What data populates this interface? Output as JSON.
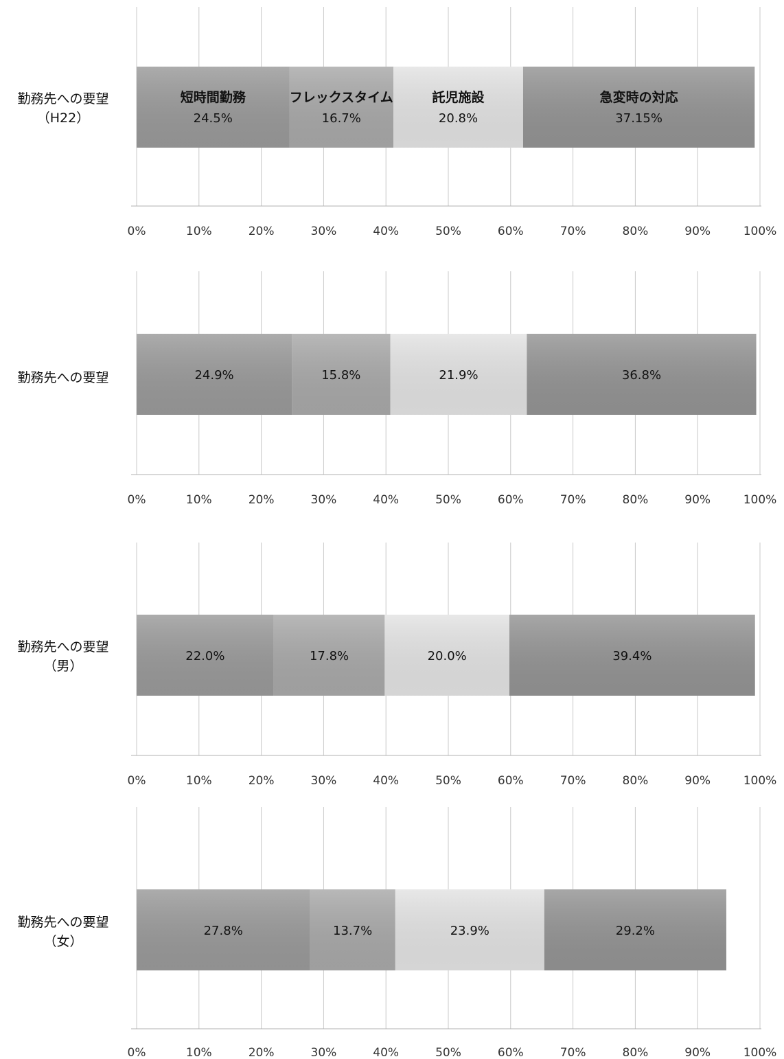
{
  "colors": {
    "dark": "#9a9a9a",
    "mid": "#a9a9a9",
    "light": "#e3e3e3",
    "darkest": "#949494",
    "grid": "#c8c8c8",
    "axis": "#b0b0b0"
  },
  "chart_data": [
    {
      "type": "bar",
      "orientation": "horizontal-stacked-100",
      "row_label": [
        "勤務先への要望",
        "（H22）"
      ],
      "categories": [
        "短時間勤務",
        "フレックスタイム",
        "託児施設",
        "急変時の対応"
      ],
      "values": [
        24.5,
        16.7,
        20.8,
        37.15
      ],
      "value_labels": [
        "24.5%",
        "16.7%",
        "20.8%",
        "37.15%"
      ],
      "xlim": [
        0,
        100
      ],
      "xticks": [
        "0%",
        "10%",
        "20%",
        "30%",
        "40%",
        "50%",
        "60%",
        "70%",
        "80%",
        "90%",
        "100%"
      ],
      "grid": true
    },
    {
      "type": "bar",
      "orientation": "horizontal-stacked-100",
      "row_label": [
        "勤務先への要望"
      ],
      "values": [
        24.9,
        15.8,
        21.9,
        36.8
      ],
      "value_labels": [
        "24.9%",
        "15.8%",
        "21.9%",
        "36.8%"
      ],
      "xlim": [
        0,
        100
      ],
      "xticks": [
        "0%",
        "10%",
        "20%",
        "30%",
        "40%",
        "50%",
        "60%",
        "70%",
        "80%",
        "90%",
        "100%"
      ],
      "grid": true
    },
    {
      "type": "bar",
      "orientation": "horizontal-stacked-100",
      "row_label": [
        "勤務先への要望",
        "（男）"
      ],
      "values": [
        22.0,
        17.8,
        20.0,
        39.4
      ],
      "value_labels": [
        "22.0%",
        "17.8%",
        "20.0%",
        "39.4%"
      ],
      "xlim": [
        0,
        100
      ],
      "xticks": [
        "0%",
        "10%",
        "20%",
        "30%",
        "40%",
        "50%",
        "60%",
        "70%",
        "80%",
        "90%",
        "100%"
      ],
      "grid": true
    },
    {
      "type": "bar",
      "orientation": "horizontal-stacked-100",
      "row_label": [
        "勤務先への要望",
        "（女）"
      ],
      "values": [
        27.8,
        13.7,
        23.9,
        29.2
      ],
      "value_labels": [
        "27.8%",
        "13.7%",
        "23.9%",
        "29.2%"
      ],
      "xlim": [
        0,
        100
      ],
      "xticks": [
        "0%",
        "10%",
        "20%",
        "30%",
        "40%",
        "50%",
        "60%",
        "70%",
        "80%",
        "90%",
        "100%"
      ],
      "grid": true
    }
  ]
}
